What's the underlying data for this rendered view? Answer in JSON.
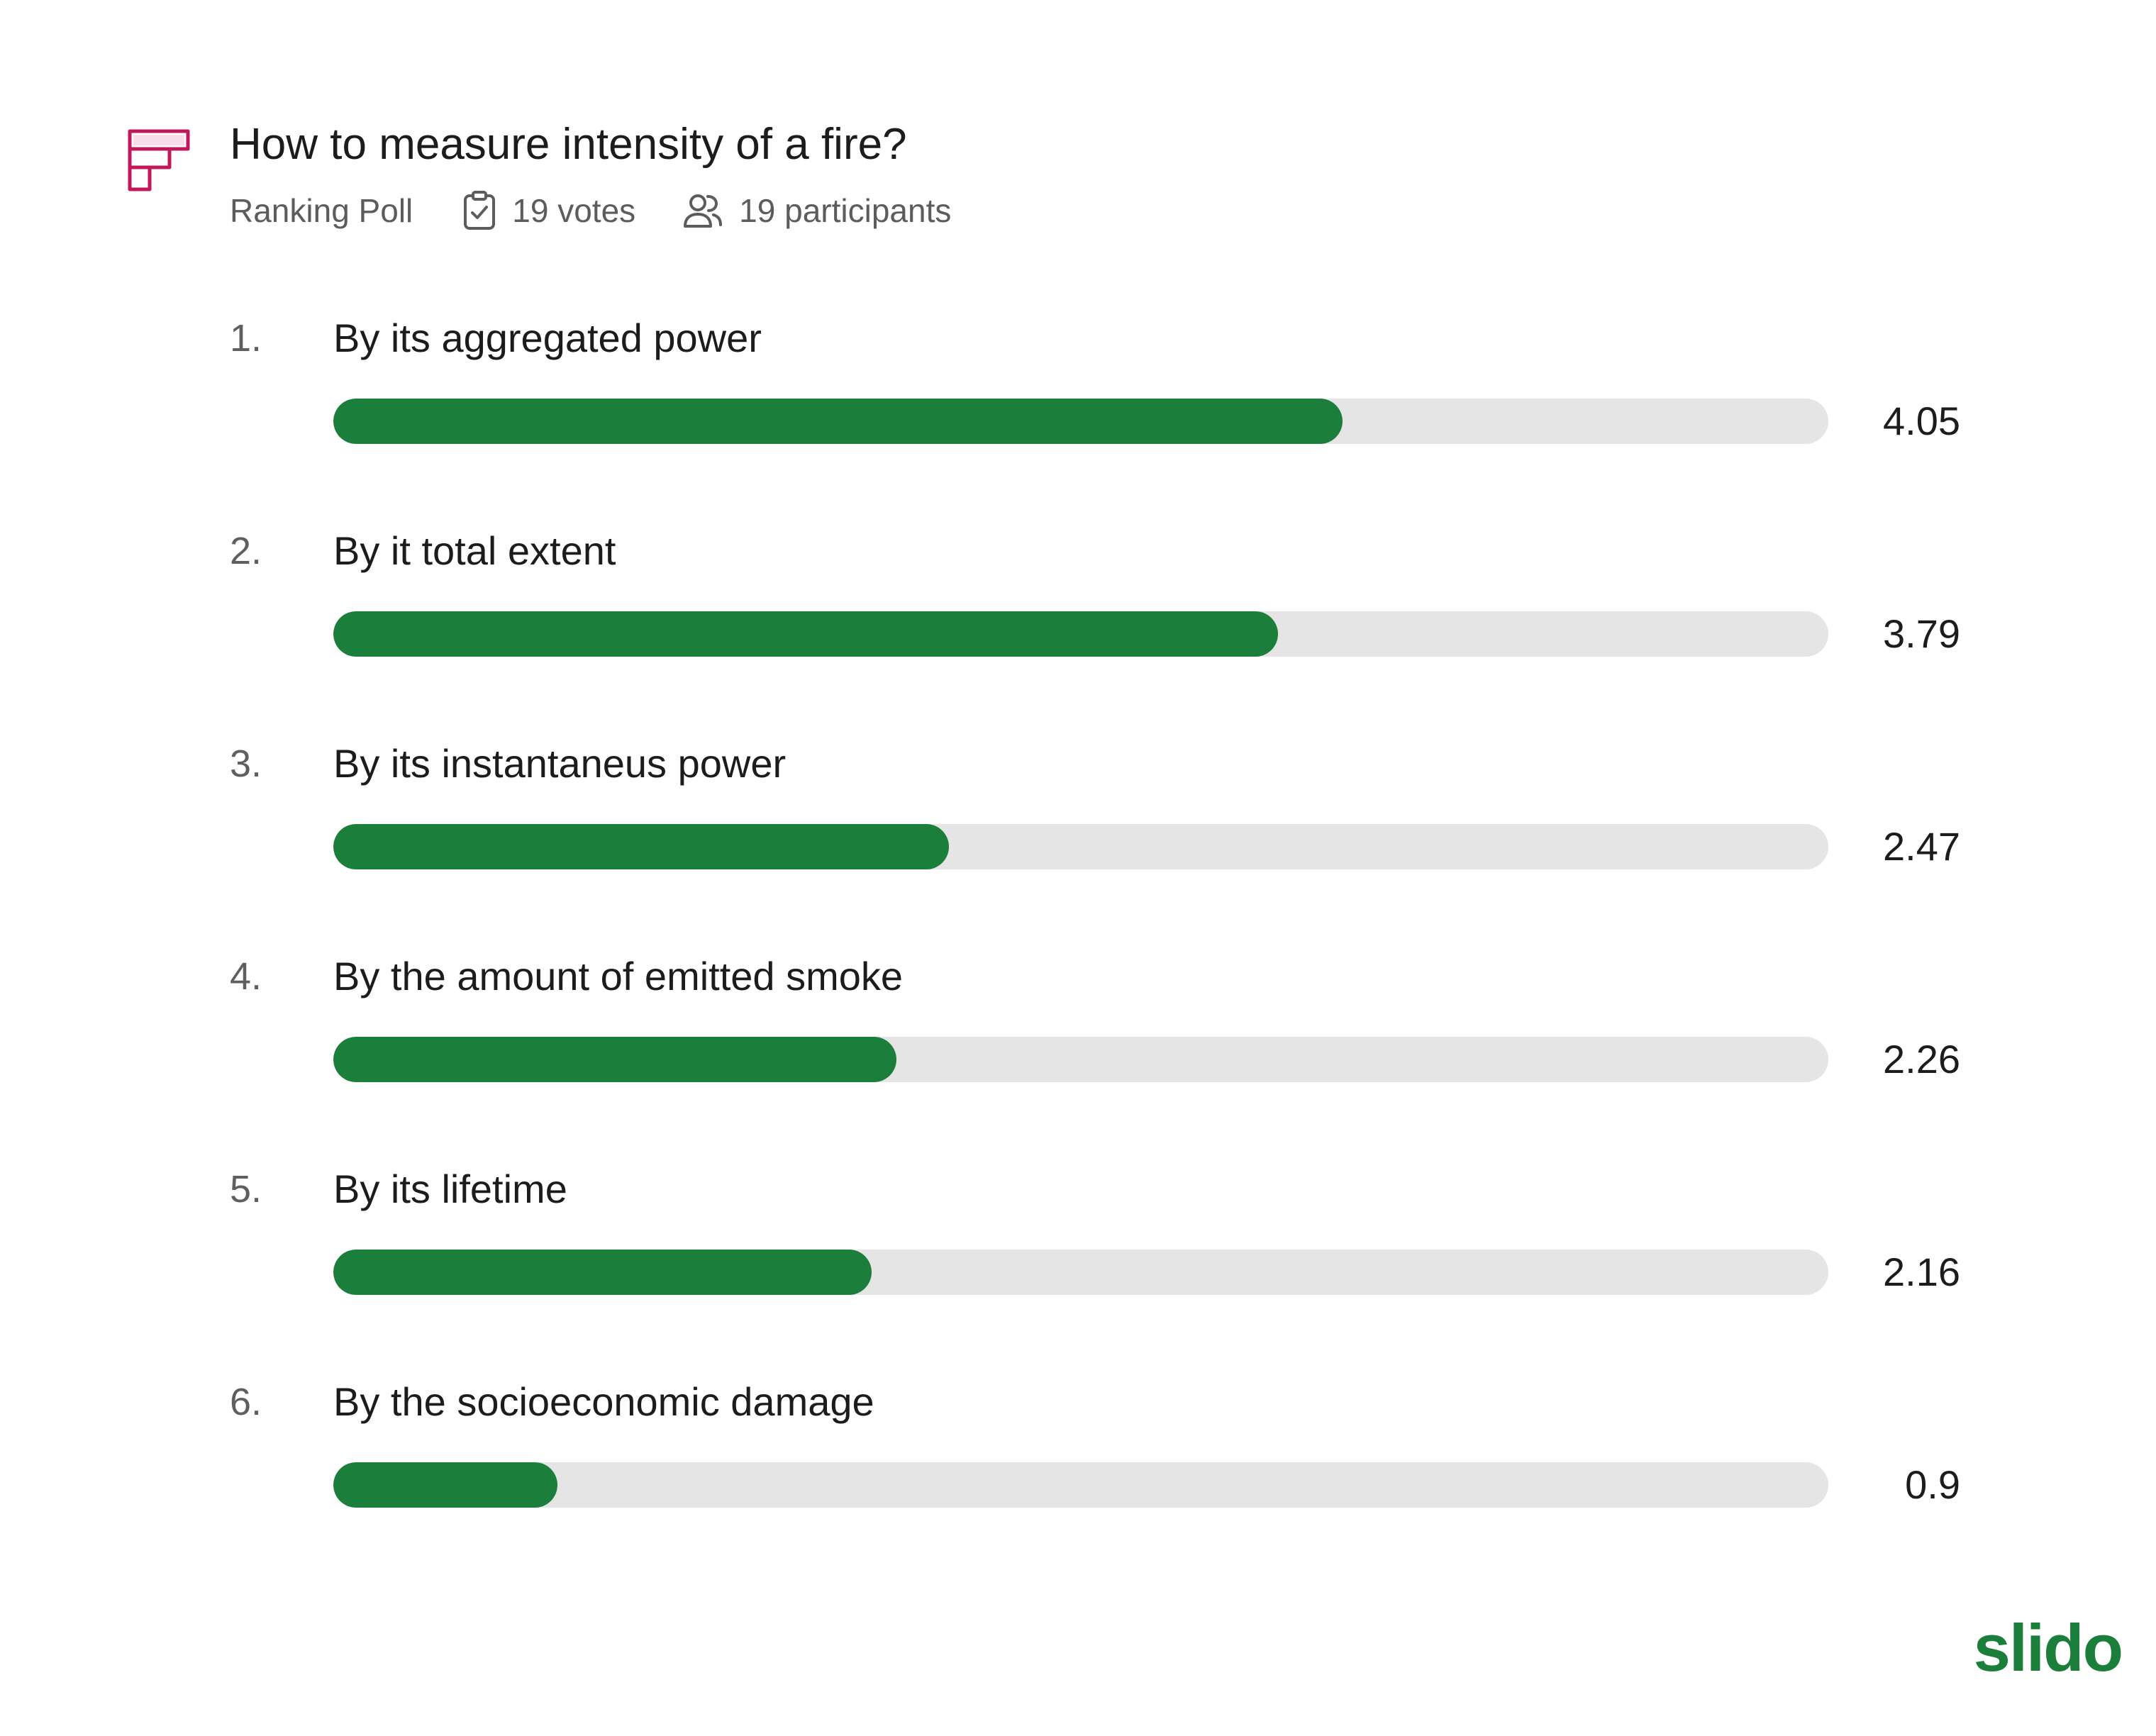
{
  "poll": {
    "title": "How to measure intensity of a fire?",
    "type": "Ranking Poll",
    "votes": "19 votes",
    "participants": "19 participants",
    "max_score": 6,
    "options": [
      {
        "rank": "1.",
        "label": "By its aggregated power",
        "value": "4.05",
        "score": 4.05
      },
      {
        "rank": "2.",
        "label": "By it total extent",
        "value": "3.79",
        "score": 3.79
      },
      {
        "rank": "3.",
        "label": "By its instantaneus power",
        "value": "2.47",
        "score": 2.47
      },
      {
        "rank": "4.",
        "label": "By the amount of emitted smoke",
        "value": "2.26",
        "score": 2.26
      },
      {
        "rank": "5.",
        "label": "By its lifetime",
        "value": "2.16",
        "score": 2.16
      },
      {
        "rank": "6.",
        "label": "By the socioeconomic damage",
        "value": "0.9",
        "score": 0.9
      }
    ]
  },
  "icons": {
    "poll_type": "ranking-poll-icon",
    "votes": "clipboard-check-icon",
    "participants": "users-icon"
  },
  "brand": {
    "logo_text": "slido"
  },
  "colors": {
    "bar_fill": "#1b7f3b",
    "bar_track": "#e5e5e5",
    "poll_icon": "#c2185b",
    "brand": "#1b7f3b"
  }
}
